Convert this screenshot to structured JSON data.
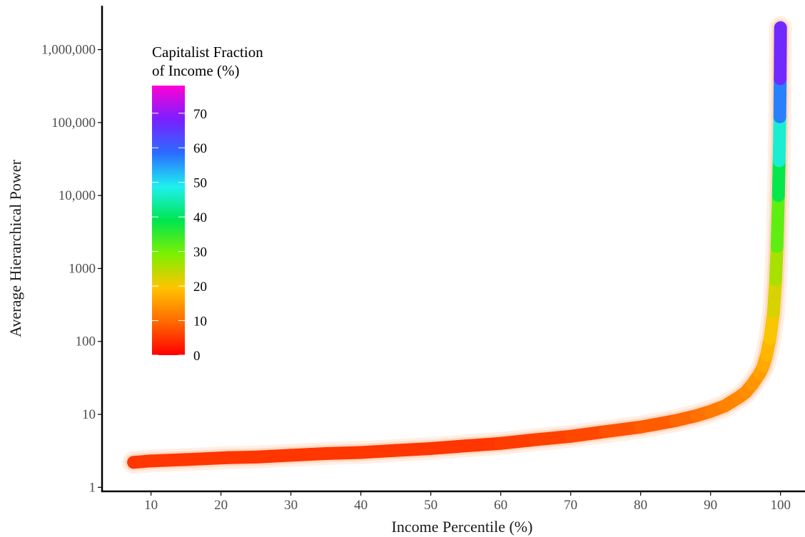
{
  "chart_data": {
    "type": "line",
    "xlabel": "Income Percentile (%)",
    "ylabel": "Average Hierarchical Power",
    "x_ticks": [
      10,
      20,
      30,
      40,
      50,
      60,
      70,
      80,
      90,
      100
    ],
    "x_tick_labels": [
      "10",
      "20",
      "30",
      "40",
      "50",
      "60",
      "70",
      "80",
      "90",
      "100"
    ],
    "y_scale": "log",
    "y_ticks": [
      1,
      10,
      100,
      1000,
      10000,
      100000,
      1000000
    ],
    "y_tick_labels": [
      "1",
      "10",
      "100",
      "1000",
      "10,000",
      "100,000",
      "1,000,000"
    ],
    "xlim": [
      3,
      103.5
    ],
    "ylim": [
      0.88,
      4000000
    ],
    "grid": false,
    "color_legend": {
      "title_lines": [
        "Capitalist Fraction",
        "of Income  (%)"
      ],
      "ticks": [
        0,
        10,
        20,
        30,
        40,
        50,
        60,
        70
      ],
      "tick_labels": [
        "0",
        "10",
        "20",
        "30",
        "40",
        "50",
        "60",
        "70"
      ],
      "range": [
        0,
        78
      ],
      "position": "top-left",
      "colors": [
        "#ff0000",
        "#ff6a00",
        "#ffc400",
        "#7cf000",
        "#00e650",
        "#1ef0f0",
        "#2b6cff",
        "#7a1fff",
        "#ff00d4"
      ]
    },
    "series": [
      {
        "x": [
          7.5,
          10,
          15,
          21,
          25,
          30,
          35,
          40,
          45,
          50,
          55,
          60,
          65,
          70,
          75,
          80,
          85,
          88,
          90,
          92,
          94,
          95,
          96,
          97,
          97.5,
          98,
          98.5,
          99,
          99.3,
          99.5,
          99.7,
          99.8,
          99.9,
          99.95,
          100
        ],
        "y": [
          2.2,
          2.3,
          2.4,
          2.55,
          2.6,
          2.75,
          2.9,
          3.0,
          3.2,
          3.4,
          3.7,
          4.0,
          4.5,
          5.0,
          5.8,
          6.7,
          8.2,
          9.6,
          11,
          13,
          17,
          20,
          26,
          36,
          45,
          65,
          110,
          250,
          700,
          2000,
          10000,
          30000,
          120000,
          400000,
          2000000
        ],
        "capitalist_fraction": [
          5,
          5,
          5,
          5,
          5,
          5,
          5,
          5,
          5,
          5,
          5,
          5,
          6,
          6,
          7,
          8,
          9,
          10,
          11,
          12,
          13,
          13,
          14,
          15,
          16,
          17,
          19,
          21,
          24,
          28,
          35,
          42,
          52,
          62,
          72
        ]
      }
    ]
  }
}
